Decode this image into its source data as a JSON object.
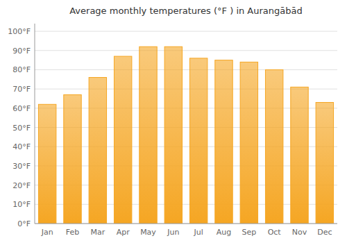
{
  "chart_data": {
    "type": "bar",
    "title": "Average monthly temperatures (°F ) in Aurangābād",
    "categories": [
      "Jan",
      "Feb",
      "Mar",
      "Apr",
      "May",
      "Jun",
      "Jul",
      "Aug",
      "Sep",
      "Oct",
      "Nov",
      "Dec"
    ],
    "values": [
      62,
      67,
      76,
      87,
      92,
      92,
      86,
      85,
      84,
      80,
      71,
      63
    ],
    "color": "#F5A623",
    "ylim": [
      0,
      104
    ],
    "yticks": [
      {
        "value": 0,
        "label": "0°F"
      },
      {
        "value": 10,
        "label": "10°F"
      },
      {
        "value": 20,
        "label": "20°F"
      },
      {
        "value": 30,
        "label": "30°F"
      },
      {
        "value": 40,
        "label": "40°F"
      },
      {
        "value": 50,
        "label": "50°F"
      },
      {
        "value": 60,
        "label": "60°F"
      },
      {
        "value": 70,
        "label": "70°F"
      },
      {
        "value": 80,
        "label": "80°F"
      },
      {
        "value": 90,
        "label": "90°F"
      },
      {
        "value": 100,
        "label": "100°F"
      }
    ],
    "grid": true
  }
}
